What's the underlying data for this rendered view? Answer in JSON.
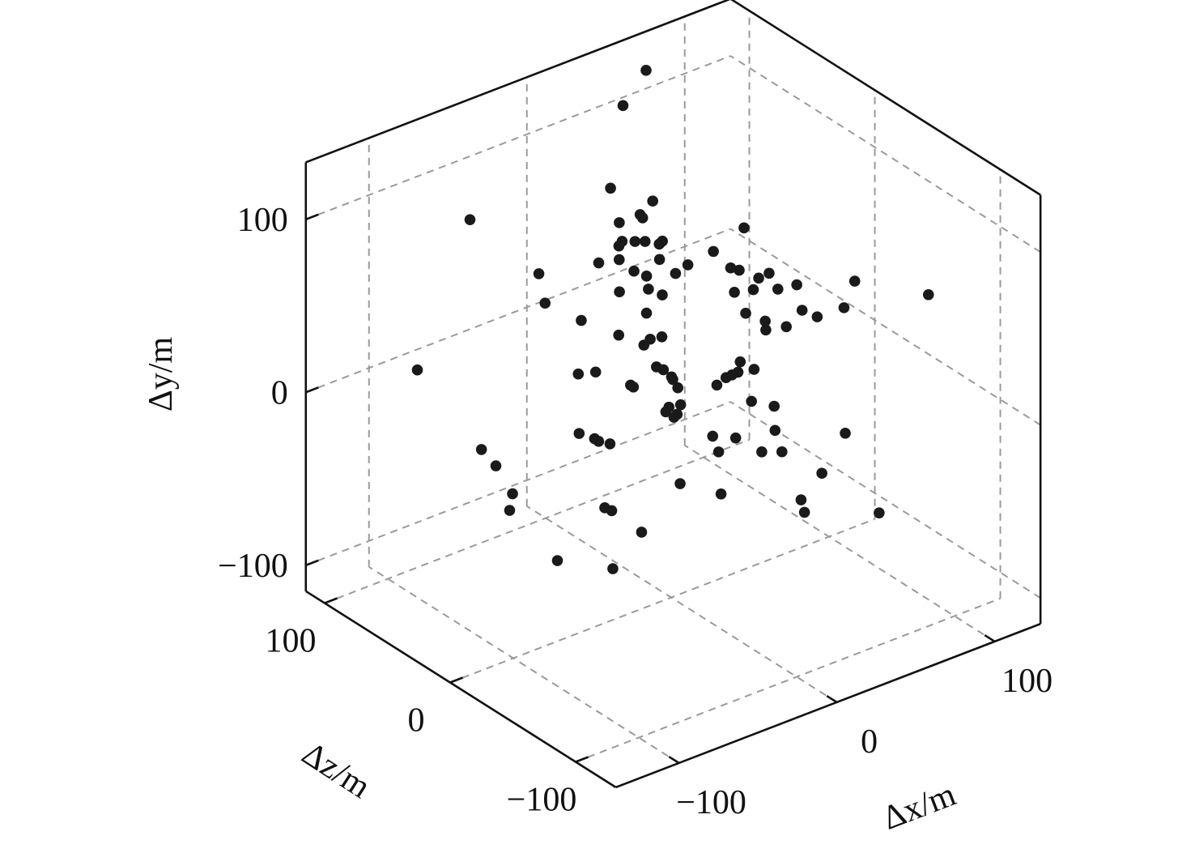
{
  "chart_data": {
    "type": "scatter",
    "projection": "3d",
    "xlabel": "Δx/m",
    "ylabel": "Δy/m",
    "zlabel": "Δz/m",
    "xlim": [
      -140,
      129
    ],
    "ylim": [
      -115,
      133
    ],
    "zlim": [
      -132,
      115
    ],
    "xticks": [
      -100,
      0,
      100
    ],
    "yticks": [
      -100,
      0,
      100
    ],
    "zticks": [
      -100,
      0,
      100
    ],
    "xtick_labels": [
      "−100",
      "0",
      "100"
    ],
    "ytick_labels": [
      "−100",
      "0",
      "100"
    ],
    "ztick_labels": [
      "−100",
      "0",
      "100"
    ],
    "grid": true,
    "marker_color": "#1a1a1a",
    "grid_color": "#9a9a9a",
    "points": [
      [
        62,
        123,
        98
      ],
      [
        45,
        110,
        95
      ],
      [
        -40,
        67,
        110
      ],
      [
        22,
        79,
        76
      ],
      [
        36,
        74,
        60
      ],
      [
        28,
        69,
        60
      ],
      [
        28,
        68,
        58
      ],
      [
        18,
        66,
        64
      ],
      [
        66,
        64,
        25
      ],
      [
        15,
        59,
        58
      ],
      [
        13,
        57,
        58
      ],
      [
        20,
        59,
        54
      ],
      [
        24,
        59,
        51
      ],
      [
        29,
        58,
        46
      ],
      [
        31,
        59,
        46
      ],
      [
        49,
        55,
        28
      ],
      [
        1,
        51,
        59
      ],
      [
        10,
        52,
        54
      ],
      [
        26,
        52,
        42
      ],
      [
        36,
        50,
        32
      ],
      [
        -25,
        47,
        74
      ],
      [
        13,
        48,
        46
      ],
      [
        17,
        46,
        41
      ],
      [
        29,
        47,
        33
      ],
      [
        52,
        49,
        18
      ],
      [
        55,
        48,
        15
      ],
      [
        61,
        45,
        7
      ],
      [
        66,
        47,
        5
      ],
      [
        74,
        43,
        -7
      ],
      [
        3,
        40,
        45
      ],
      [
        15,
        41,
        37
      ],
      [
        19,
        39,
        31
      ],
      [
        48,
        40,
        10
      ],
      [
        56,
        41,
        5
      ],
      [
        66,
        41,
        -2
      ],
      [
        98,
        44,
        -23
      ],
      [
        124,
        39,
        -49
      ],
      [
        -29,
        36,
        64
      ],
      [
        9,
        32,
        31
      ],
      [
        48,
        32,
        1
      ],
      [
        71,
        33,
        -15
      ],
      [
        75,
        31,
        -22
      ],
      [
        88,
        34,
        -27
      ],
      [
        -18,
        29,
        49
      ],
      [
        54,
        29,
        -7
      ],
      [
        52,
        26,
        -10
      ],
      [
        61,
        27,
        -15
      ],
      [
        -7,
        24,
        33
      ],
      [
        5,
        22,
        23
      ],
      [
        10,
        23,
        20
      ],
      [
        1,
        20,
        23
      ],
      [
        -94,
        11,
        84
      ],
      [
        -31,
        9,
        35
      ],
      [
        -24,
        10,
        30
      ],
      [
        1,
        12,
        13
      ],
      [
        3,
        11,
        10
      ],
      [
        5,
        8,
        6
      ],
      [
        5,
        7,
        5
      ],
      [
        -13,
        5,
        16
      ],
      [
        -12,
        4,
        15
      ],
      [
        5,
        4,
        1
      ],
      [
        35,
        14,
        -11
      ],
      [
        39,
        11,
        -17
      ],
      [
        32,
        10,
        -13
      ],
      [
        29,
        9,
        -12
      ],
      [
        26,
        8,
        -11
      ],
      [
        21,
        5,
        -10
      ],
      [
        31,
        -1,
        -25
      ],
      [
        2,
        -2,
        -5
      ],
      [
        -3,
        -3,
        -2
      ],
      [
        -5,
        -5,
        -2
      ],
      [
        -1,
        -6,
        -6
      ],
      [
        -3,
        -7,
        -6
      ],
      [
        39,
        -3,
        -33
      ],
      [
        -44,
        -13,
        18
      ],
      [
        -39,
        -15,
        12
      ],
      [
        -38,
        -16,
        10
      ],
      [
        -34,
        -17,
        6
      ],
      [
        8,
        -14,
        -23
      ],
      [
        17,
        -15,
        -30
      ],
      [
        34,
        -12,
        -40
      ],
      [
        61,
        -13,
        -62
      ],
      [
        -86,
        -19,
        43
      ],
      [
        7,
        -20,
        -29
      ],
      [
        24,
        -20,
        -42
      ],
      [
        32,
        -20,
        -48
      ],
      [
        -84,
        -25,
        34
      ],
      [
        43,
        -28,
        -66
      ],
      [
        -15,
        -32,
        -26
      ],
      [
        -83,
        -36,
        22
      ],
      [
        -1,
        -36,
        -41
      ],
      [
        29,
        -38,
        -67
      ],
      [
        -88,
        -42,
        18
      ],
      [
        -50,
        -41,
        -10
      ],
      [
        -48,
        -42,
        -13
      ],
      [
        28,
        -43,
        -71
      ],
      [
        57,
        -43,
        -94
      ],
      [
        -41,
        -50,
        -28
      ],
      [
        -80,
        -61,
        -10
      ],
      [
        -60,
        -64,
        -29
      ]
    ]
  }
}
